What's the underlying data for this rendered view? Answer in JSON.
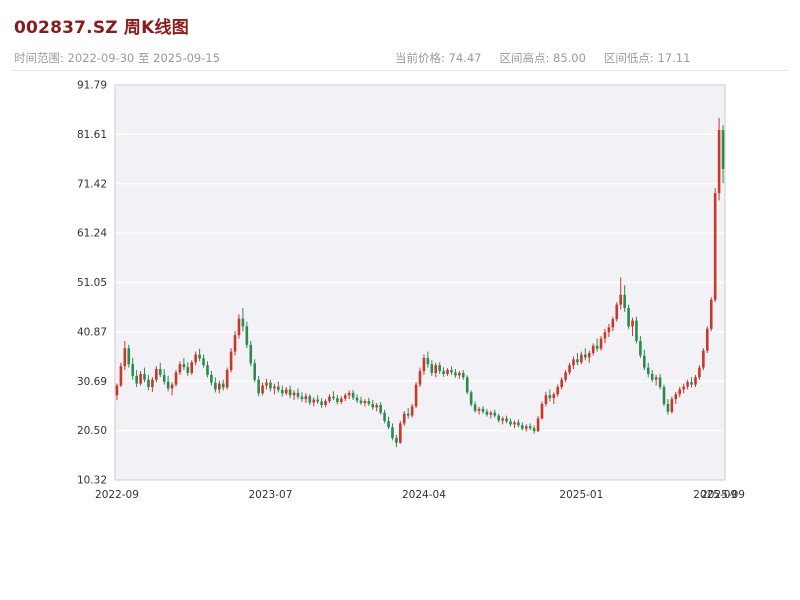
{
  "header": {
    "title": "002837.SZ 周K线图",
    "time_range_label": "时间范围: 2022-09-30 至 2025-09-15",
    "stats": [
      {
        "label": "当前价格:",
        "value": "74.47"
      },
      {
        "label": "区间高点:",
        "value": "85.00"
      },
      {
        "label": "区间低点:",
        "value": "17.11"
      }
    ]
  },
  "chart_data": {
    "type": "candlestick",
    "symbol": "002837.SZ",
    "interval": "weekly",
    "start_date": "2022-09-30",
    "end_date": "2025-09-15",
    "current_price": 74.47,
    "range_high": 85.0,
    "range_low": 17.11,
    "grid": "horizontal",
    "y_axis": {
      "min": 10.32,
      "max": 91.79,
      "tick_labels": [
        "10.32",
        "20.50",
        "30.69",
        "40.87",
        "51.05",
        "61.24",
        "71.42",
        "81.61",
        "91.79"
      ]
    },
    "x_ticks": [
      {
        "i": 0,
        "label": "2022-09"
      },
      {
        "i": 39,
        "label": "2023-07"
      },
      {
        "i": 78,
        "label": "2024-04"
      },
      {
        "i": 118,
        "label": "2025-01"
      },
      {
        "i": 152,
        "label": "2025-09"
      },
      {
        "i": 154,
        "label": "2025-09"
      }
    ],
    "colors": {
      "up": "#c9362c",
      "down": "#2c8a4e",
      "plot_bg": "#f2f2f6",
      "grid": "#ffffff",
      "border": "#cccccc",
      "tick_text": "#333333",
      "title": "#8b1a1a",
      "subtitle": "#9b9b9b"
    },
    "candles": [
      [
        27.8,
        30.2,
        26.8,
        29.8
      ],
      [
        29.8,
        34.5,
        29.5,
        33.8
      ],
      [
        33.8,
        39.0,
        33.0,
        37.5
      ],
      [
        37.5,
        38.2,
        33.5,
        34.2
      ],
      [
        34.2,
        35.5,
        31.0,
        31.8
      ],
      [
        31.8,
        33.0,
        29.5,
        30.2
      ],
      [
        30.2,
        32.8,
        29.8,
        32.2
      ],
      [
        32.2,
        33.5,
        30.5,
        31.0
      ],
      [
        31.0,
        32.0,
        28.8,
        29.5
      ],
      [
        29.5,
        31.5,
        28.5,
        31.0
      ],
      [
        31.0,
        33.8,
        30.5,
        33.2
      ],
      [
        33.2,
        34.5,
        31.5,
        32.0
      ],
      [
        32.0,
        33.2,
        30.0,
        30.6
      ],
      [
        30.6,
        31.8,
        28.6,
        29.2
      ],
      [
        29.2,
        30.5,
        27.8,
        30.0
      ],
      [
        30.0,
        33.0,
        29.6,
        32.5
      ],
      [
        32.5,
        34.8,
        32.0,
        34.2
      ],
      [
        34.2,
        35.5,
        33.0,
        33.6
      ],
      [
        33.6,
        34.6,
        31.8,
        32.4
      ],
      [
        32.4,
        35.0,
        32.0,
        34.6
      ],
      [
        34.6,
        36.8,
        34.0,
        36.2
      ],
      [
        36.2,
        37.4,
        34.8,
        35.4
      ],
      [
        35.4,
        36.2,
        33.5,
        34.0
      ],
      [
        34.0,
        34.8,
        31.5,
        32.0
      ],
      [
        32.0,
        32.8,
        29.8,
        30.4
      ],
      [
        30.4,
        31.5,
        28.4,
        29.0
      ],
      [
        29.0,
        30.8,
        28.2,
        30.2
      ],
      [
        30.2,
        31.0,
        28.8,
        29.4
      ],
      [
        29.4,
        33.5,
        29.0,
        33.0
      ],
      [
        33.0,
        37.5,
        32.5,
        36.8
      ],
      [
        36.8,
        41.0,
        36.0,
        40.2
      ],
      [
        40.2,
        44.5,
        39.5,
        43.6
      ],
      [
        43.6,
        45.8,
        41.0,
        42.0
      ],
      [
        42.0,
        43.0,
        37.5,
        38.2
      ],
      [
        38.2,
        39.0,
        33.8,
        34.4
      ],
      [
        34.4,
        35.2,
        30.5,
        31.0
      ],
      [
        31.0,
        31.8,
        27.6,
        28.2
      ],
      [
        28.2,
        30.4,
        27.8,
        29.8
      ],
      [
        29.8,
        31.2,
        29.0,
        30.4
      ],
      [
        30.4,
        31.0,
        28.6,
        29.2
      ],
      [
        29.2,
        30.2,
        28.0,
        29.6
      ],
      [
        29.6,
        30.6,
        28.4,
        28.9
      ],
      [
        28.9,
        29.8,
        27.5,
        28.2
      ],
      [
        28.2,
        29.5,
        27.8,
        29.0
      ],
      [
        29.0,
        29.8,
        27.2,
        27.8
      ],
      [
        27.8,
        28.8,
        26.8,
        28.3
      ],
      [
        28.3,
        29.2,
        27.0,
        27.5
      ],
      [
        27.5,
        28.4,
        26.4,
        27.0
      ],
      [
        27.0,
        28.2,
        26.2,
        27.6
      ],
      [
        27.6,
        28.0,
        25.8,
        26.3
      ],
      [
        26.3,
        27.4,
        25.5,
        26.9
      ],
      [
        26.9,
        27.8,
        26.0,
        26.5
      ],
      [
        26.5,
        27.2,
        25.2,
        25.8
      ],
      [
        25.8,
        27.0,
        25.4,
        26.6
      ],
      [
        26.6,
        28.0,
        26.2,
        27.5
      ],
      [
        27.5,
        28.6,
        26.8,
        27.2
      ],
      [
        27.2,
        27.9,
        25.9,
        26.4
      ],
      [
        26.4,
        27.6,
        26.0,
        27.1
      ],
      [
        27.1,
        28.2,
        26.6,
        27.8
      ],
      [
        27.8,
        28.8,
        27.0,
        28.3
      ],
      [
        28.3,
        28.9,
        26.8,
        27.3
      ],
      [
        27.3,
        28.0,
        26.2,
        26.7
      ],
      [
        26.7,
        27.5,
        25.8,
        26.2
      ],
      [
        26.2,
        27.0,
        25.5,
        26.6
      ],
      [
        26.6,
        27.3,
        25.6,
        26.0
      ],
      [
        26.0,
        26.8,
        24.8,
        25.3
      ],
      [
        25.3,
        26.2,
        24.5,
        25.8
      ],
      [
        25.8,
        26.4,
        23.8,
        24.2
      ],
      [
        24.2,
        24.8,
        22.0,
        22.5
      ],
      [
        22.5,
        23.4,
        20.8,
        21.2
      ],
      [
        21.2,
        22.0,
        18.5,
        19.0
      ],
      [
        19.0,
        19.6,
        17.11,
        18.0
      ],
      [
        18.0,
        22.5,
        17.8,
        22.0
      ],
      [
        22.0,
        24.5,
        21.5,
        24.0
      ],
      [
        24.0,
        25.2,
        23.0,
        23.6
      ],
      [
        23.6,
        26.0,
        23.2,
        25.5
      ],
      [
        25.5,
        30.5,
        25.2,
        30.0
      ],
      [
        30.0,
        33.5,
        29.5,
        32.8
      ],
      [
        32.8,
        36.2,
        32.0,
        35.5
      ],
      [
        35.5,
        36.8,
        33.5,
        34.2
      ],
      [
        34.2,
        35.0,
        31.8,
        32.4
      ],
      [
        32.4,
        34.5,
        31.5,
        34.0
      ],
      [
        34.0,
        34.6,
        32.2,
        32.8
      ],
      [
        32.8,
        33.6,
        31.6,
        32.2
      ],
      [
        32.2,
        33.4,
        31.8,
        33.0
      ],
      [
        33.0,
        33.8,
        32.0,
        32.5
      ],
      [
        32.5,
        33.2,
        31.4,
        31.9
      ],
      [
        31.9,
        32.8,
        31.2,
        32.4
      ],
      [
        32.4,
        33.0,
        31.0,
        31.5
      ],
      [
        31.5,
        31.9,
        28.0,
        28.4
      ],
      [
        28.4,
        28.8,
        25.5,
        25.9
      ],
      [
        25.9,
        26.5,
        24.2,
        24.6
      ],
      [
        24.6,
        25.4,
        23.8,
        25.0
      ],
      [
        25.0,
        25.6,
        24.0,
        24.4
      ],
      [
        24.4,
        25.0,
        23.4,
        23.8
      ],
      [
        23.8,
        24.6,
        23.0,
        24.2
      ],
      [
        24.2,
        24.8,
        23.2,
        23.6
      ],
      [
        23.6,
        24.0,
        22.2,
        22.6
      ],
      [
        22.6,
        23.4,
        21.8,
        23.0
      ],
      [
        23.0,
        23.6,
        22.0,
        22.4
      ],
      [
        22.4,
        23.0,
        21.4,
        21.8
      ],
      [
        21.8,
        22.6,
        21.0,
        22.2
      ],
      [
        22.2,
        22.8,
        21.2,
        21.6
      ],
      [
        21.6,
        22.2,
        20.5,
        20.9
      ],
      [
        20.9,
        21.8,
        20.3,
        21.4
      ],
      [
        21.4,
        22.0,
        20.6,
        21.0
      ],
      [
        21.0,
        21.6,
        19.9,
        20.4
      ],
      [
        20.4,
        23.5,
        20.2,
        23.0
      ],
      [
        23.0,
        26.5,
        22.8,
        26.0
      ],
      [
        26.0,
        28.5,
        25.5,
        27.8
      ],
      [
        27.8,
        29.0,
        26.5,
        27.2
      ],
      [
        27.2,
        28.4,
        26.0,
        28.0
      ],
      [
        28.0,
        30.0,
        27.5,
        29.5
      ],
      [
        29.5,
        31.5,
        29.0,
        31.0
      ],
      [
        31.0,
        33.0,
        30.5,
        32.5
      ],
      [
        32.5,
        34.5,
        32.0,
        34.0
      ],
      [
        34.0,
        35.8,
        33.2,
        35.2
      ],
      [
        35.2,
        36.5,
        34.0,
        34.6
      ],
      [
        34.6,
        36.8,
        34.2,
        36.2
      ],
      [
        36.2,
        37.5,
        35.0,
        35.6
      ],
      [
        35.6,
        37.0,
        34.5,
        36.5
      ],
      [
        36.5,
        38.5,
        36.0,
        38.0
      ],
      [
        38.0,
        39.5,
        36.8,
        37.4
      ],
      [
        37.4,
        40.0,
        37.0,
        39.5
      ],
      [
        39.5,
        41.5,
        38.5,
        40.8
      ],
      [
        40.8,
        42.5,
        39.8,
        41.8
      ],
      [
        41.8,
        44.0,
        41.0,
        43.5
      ],
      [
        43.5,
        47.0,
        43.0,
        46.5
      ],
      [
        46.5,
        52.1,
        45.5,
        48.5
      ],
      [
        48.5,
        50.5,
        45.0,
        45.8
      ],
      [
        45.8,
        46.5,
        41.5,
        42.0
      ],
      [
        42.0,
        43.8,
        40.0,
        43.2
      ],
      [
        43.2,
        44.0,
        38.5,
        39.0
      ],
      [
        39.0,
        40.0,
        35.5,
        36.0
      ],
      [
        36.0,
        37.2,
        33.0,
        33.5
      ],
      [
        33.5,
        34.5,
        31.5,
        32.2
      ],
      [
        32.2,
        33.0,
        30.5,
        31.0
      ],
      [
        31.0,
        32.0,
        29.8,
        31.5
      ],
      [
        31.5,
        32.2,
        29.0,
        29.5
      ],
      [
        29.5,
        30.0,
        25.5,
        26.0
      ],
      [
        26.0,
        27.0,
        23.8,
        24.4
      ],
      [
        24.4,
        27.5,
        24.0,
        27.0
      ],
      [
        27.0,
        28.5,
        26.0,
        28.0
      ],
      [
        28.0,
        29.5,
        27.4,
        29.0
      ],
      [
        29.0,
        30.2,
        28.2,
        29.6
      ],
      [
        29.6,
        31.0,
        29.0,
        30.5
      ],
      [
        30.5,
        31.5,
        29.4,
        30.0
      ],
      [
        30.0,
        32.0,
        29.5,
        31.5
      ],
      [
        31.5,
        34.0,
        31.0,
        33.5
      ],
      [
        33.5,
        37.5,
        33.0,
        37.0
      ],
      [
        37.0,
        42.0,
        36.5,
        41.5
      ],
      [
        41.5,
        48.0,
        41.0,
        47.5
      ],
      [
        47.5,
        70.5,
        47.0,
        69.5
      ],
      [
        69.5,
        85.0,
        68.0,
        82.5
      ],
      [
        82.5,
        83.5,
        71.5,
        74.47
      ]
    ]
  }
}
